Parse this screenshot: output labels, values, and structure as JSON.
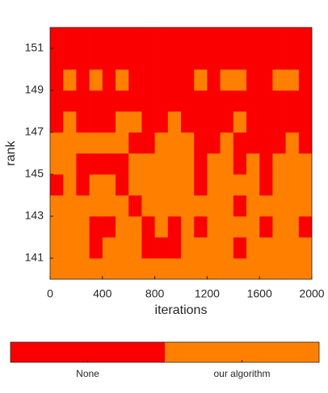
{
  "chart_data": {
    "type": "heatmap",
    "xlabel": "iterations",
    "ylabel": "rank",
    "xlim": [
      0,
      2000
    ],
    "ylim": [
      140,
      152
    ],
    "xticks": [
      0,
      400,
      800,
      1200,
      1600,
      2000
    ],
    "yticks": [
      141,
      143,
      145,
      147,
      149,
      151
    ],
    "x_edges": [
      0,
      100,
      200,
      300,
      400,
      500,
      600,
      700,
      800,
      900,
      1000,
      1100,
      1200,
      1300,
      1400,
      1500,
      1600,
      1700,
      1800,
      1900,
      2000
    ],
    "y_edges": [
      140,
      141,
      142,
      143,
      144,
      145,
      146,
      147,
      148,
      149,
      150,
      151,
      152
    ],
    "z": [
      [
        1,
        1,
        1,
        1,
        1,
        1,
        1,
        1,
        1,
        1,
        1,
        1,
        1,
        1,
        1,
        1,
        1,
        1,
        1,
        1
      ],
      [
        1,
        1,
        1,
        0,
        1,
        1,
        1,
        0,
        0,
        0,
        1,
        1,
        1,
        1,
        0,
        1,
        1,
        1,
        1,
        1
      ],
      [
        1,
        1,
        1,
        0,
        0,
        1,
        1,
        0,
        1,
        0,
        1,
        0,
        1,
        1,
        1,
        1,
        0,
        1,
        1,
        0
      ],
      [
        1,
        1,
        1,
        1,
        1,
        1,
        0,
        1,
        1,
        1,
        1,
        1,
        1,
        1,
        0,
        1,
        1,
        1,
        1,
        1
      ],
      [
        0,
        1,
        0,
        1,
        1,
        0,
        1,
        1,
        1,
        1,
        1,
        0,
        1,
        1,
        1,
        1,
        0,
        1,
        1,
        1
      ],
      [
        1,
        1,
        0,
        0,
        0,
        0,
        1,
        1,
        1,
        1,
        1,
        0,
        1,
        1,
        0,
        1,
        0,
        1,
        1,
        1
      ],
      [
        1,
        1,
        1,
        1,
        1,
        1,
        0,
        0,
        1,
        1,
        1,
        0,
        0,
        1,
        0,
        0,
        0,
        0,
        1,
        0
      ],
      [
        0,
        1,
        0,
        0,
        0,
        1,
        1,
        0,
        0,
        1,
        0,
        0,
        0,
        0,
        1,
        0,
        0,
        0,
        0,
        0
      ],
      [
        0,
        0,
        0,
        0,
        0,
        0,
        0,
        0,
        0,
        0,
        0,
        0,
        0,
        0,
        0,
        0,
        0,
        0,
        0,
        0
      ],
      [
        0,
        1,
        0,
        1,
        0,
        1,
        0,
        0,
        0,
        0,
        0,
        1,
        0,
        1,
        1,
        0,
        0,
        1,
        1,
        0
      ],
      [
        0,
        0,
        0,
        0,
        0,
        0,
        0,
        0,
        0,
        0,
        0,
        0,
        0,
        0,
        0,
        0,
        0,
        0,
        0,
        0
      ],
      [
        0,
        0,
        0,
        0,
        0,
        0,
        0,
        0,
        0,
        0,
        0,
        0,
        0,
        0,
        0,
        0,
        0,
        0,
        0,
        0
      ]
    ],
    "colorbar": {
      "labels": [
        "None",
        "our algorithm"
      ],
      "colors": [
        "#fa0000",
        "#ff8000"
      ]
    }
  }
}
